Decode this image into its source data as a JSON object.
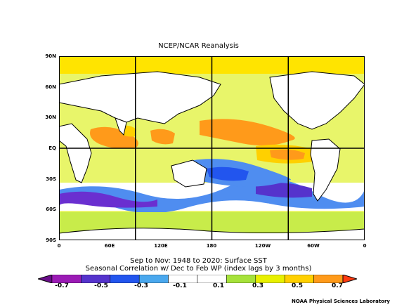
{
  "title": "NCEP/NCAR Reanalysis",
  "subtitle_line1": "Sep to Nov: 1948 to 2020: Surface SST",
  "subtitle_line2": "Seasonal Correlation w/ Dec to Feb WP (index lags by 3 months)",
  "credit": "NOAA Physical Sciences Laboratory",
  "lat_labels": [
    "90N",
    "60N",
    "30N",
    "EQ",
    "30S",
    "60S",
    "90S"
  ],
  "lon_labels": [
    "0",
    "60E",
    "120E",
    "180",
    "120W",
    "60W",
    "0"
  ],
  "colorbar": {
    "labels": [
      "-0.7",
      "-0.5",
      "-0.3",
      "-0.1",
      "0.1",
      "0.3",
      "0.5",
      "0.7"
    ],
    "colors": [
      "#6a0d8a",
      "#9b1bb5",
      "#5533cc",
      "#2255ee",
      "#4aa8ee",
      "#ffffff",
      "#ffffff",
      "#a6e23a",
      "#e8f000",
      "#ffd000",
      "#ff9a1a",
      "#ff3a10"
    ]
  }
}
